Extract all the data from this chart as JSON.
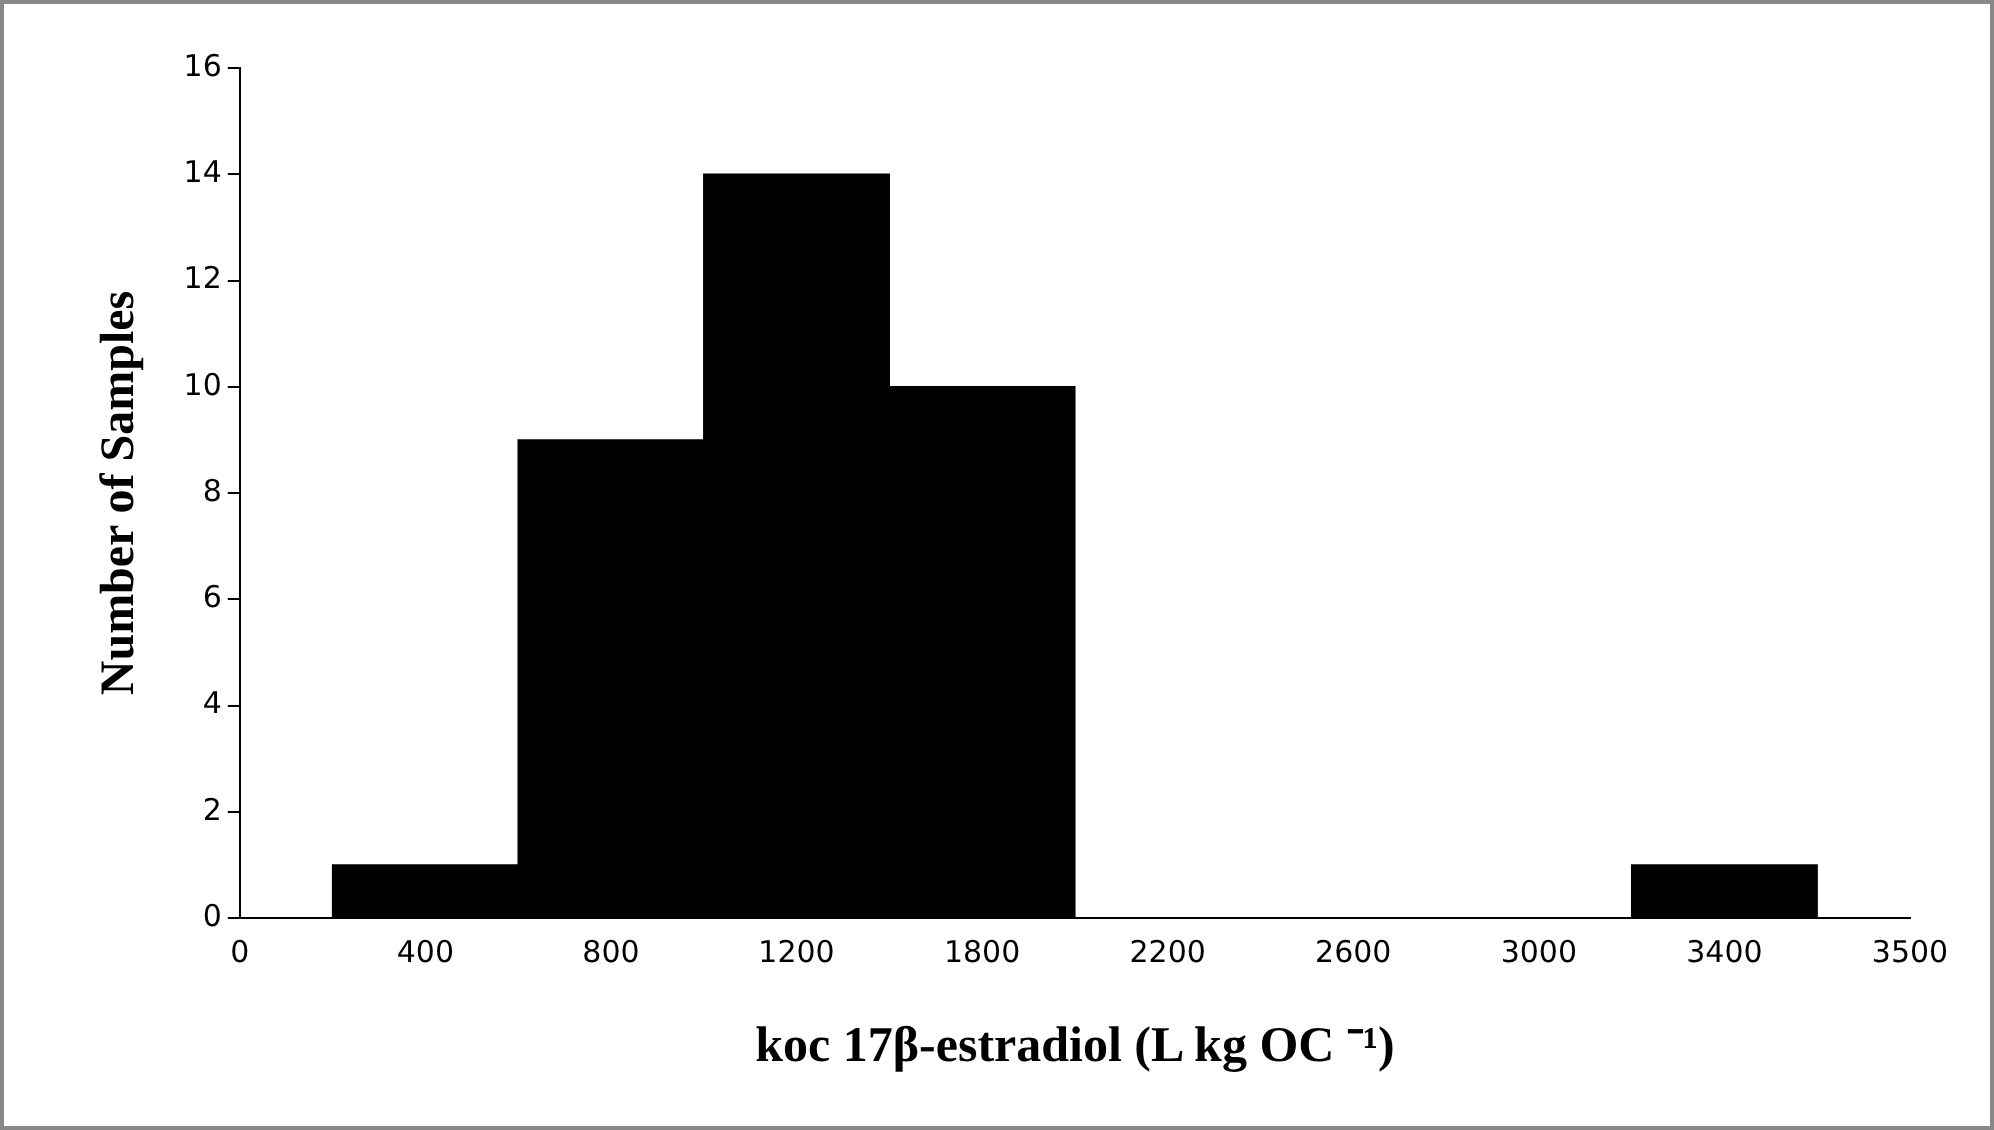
{
  "chart_data": {
    "type": "bar",
    "xlabel": "koc 17β-estradiol (L kg OC ⁻¹)",
    "ylabel": "Number of Samples",
    "categories": [
      "0",
      "400",
      "800",
      "1200",
      "1800",
      "2200",
      "2600",
      "3000",
      "3400",
      "3500"
    ],
    "values": [
      0,
      1,
      9,
      14,
      10,
      0,
      0,
      0,
      1,
      0
    ],
    "color": "#000000",
    "ylim": [
      0,
      16
    ],
    "yticks": [
      0,
      2,
      4,
      6,
      8,
      10,
      12,
      14,
      16
    ],
    "grid": false,
    "legend": false
  }
}
